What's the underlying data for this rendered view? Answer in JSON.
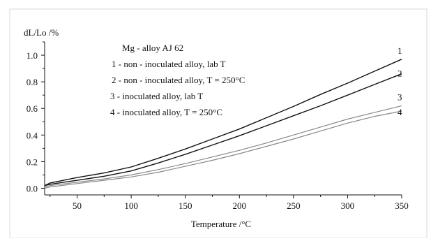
{
  "chart_data": {
    "type": "line",
    "title": "Mg - alloy AJ 62",
    "xlabel": "Temperature /°C",
    "ylabel": "dL/Lo /%",
    "xlim": [
      20,
      350
    ],
    "ylim": [
      -0.05,
      1.1
    ],
    "xticks": [
      50,
      100,
      150,
      200,
      250,
      300,
      350
    ],
    "yticks": [
      0.0,
      0.2,
      0.4,
      0.6,
      0.8,
      1.0
    ],
    "xtick_labels": [
      "50",
      "100",
      "150",
      "200",
      "250",
      "300",
      "350"
    ],
    "ytick_labels": [
      "0.0",
      "0.2",
      "0.4",
      "0.6",
      "0.8",
      "1.0"
    ],
    "grid": false,
    "legend": [
      "1 - non - inoculated alloy, lab T",
      "2 - non - inoculated alloy, T = 250°C",
      "3 -  inoculated alloy, lab T",
      "4 -  inoculated alloy, T = 250°C"
    ],
    "x": [
      20,
      25,
      50,
      75,
      100,
      125,
      150,
      175,
      200,
      225,
      250,
      275,
      300,
      325,
      350
    ],
    "series": [
      {
        "name": "1",
        "color": "#111111",
        "values": [
          0.02,
          0.04,
          0.08,
          0.115,
          0.16,
          0.225,
          0.295,
          0.37,
          0.445,
          0.53,
          0.615,
          0.705,
          0.79,
          0.88,
          0.97
        ]
      },
      {
        "name": "2",
        "color": "#111111",
        "values": [
          0.02,
          0.03,
          0.06,
          0.09,
          0.13,
          0.19,
          0.255,
          0.325,
          0.395,
          0.47,
          0.545,
          0.62,
          0.7,
          0.78,
          0.86
        ]
      },
      {
        "name": "3",
        "color": "#888888",
        "values": [
          0.01,
          0.02,
          0.045,
          0.07,
          0.1,
          0.14,
          0.185,
          0.235,
          0.285,
          0.34,
          0.4,
          0.46,
          0.52,
          0.57,
          0.62
        ]
      },
      {
        "name": "4",
        "color": "#888888",
        "values": [
          0.0,
          0.01,
          0.035,
          0.06,
          0.085,
          0.12,
          0.165,
          0.21,
          0.26,
          0.315,
          0.37,
          0.43,
          0.49,
          0.54,
          0.58
        ]
      }
    ]
  }
}
